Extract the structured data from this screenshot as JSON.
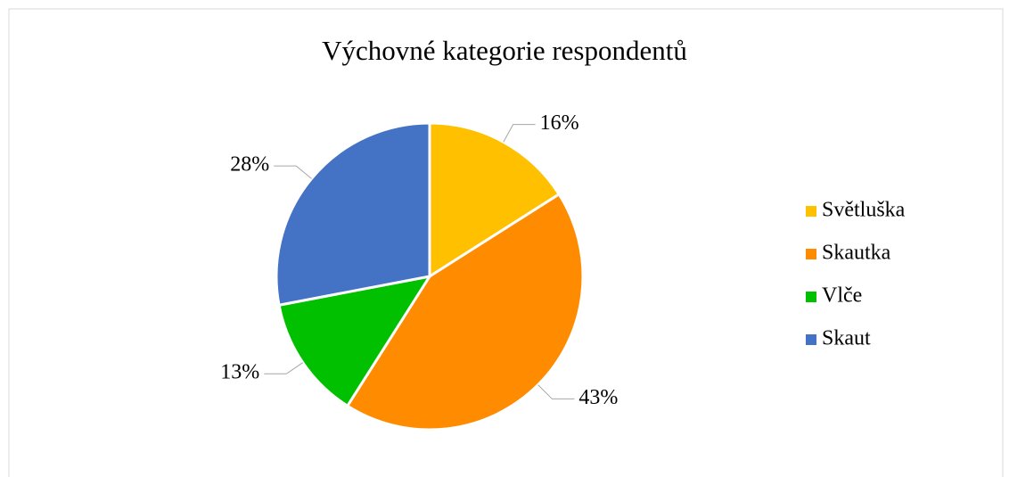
{
  "chart_data": {
    "type": "pie",
    "title": "Výchovné kategorie respondentů",
    "categories": [
      "Světluška",
      "Skautka",
      "Vlče",
      "Skaut"
    ],
    "values": [
      16,
      43,
      13,
      28
    ],
    "value_labels": [
      "16%",
      "43%",
      "13%",
      "28%"
    ],
    "colors": [
      "#FFC000",
      "#FF8C00",
      "#00C000",
      "#4472C4"
    ],
    "legend": "right"
  }
}
